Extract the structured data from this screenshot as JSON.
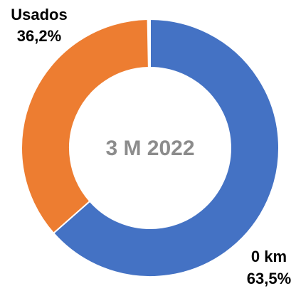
{
  "chart_data": {
    "type": "donut",
    "title": "3 M 2022",
    "categories": [
      "0 km",
      "Usados"
    ],
    "values": [
      63.5,
      36.2
    ],
    "value_labels": [
      "63,5%",
      "36,2%"
    ],
    "colors": [
      "#4472c4",
      "#ed7d31"
    ]
  }
}
